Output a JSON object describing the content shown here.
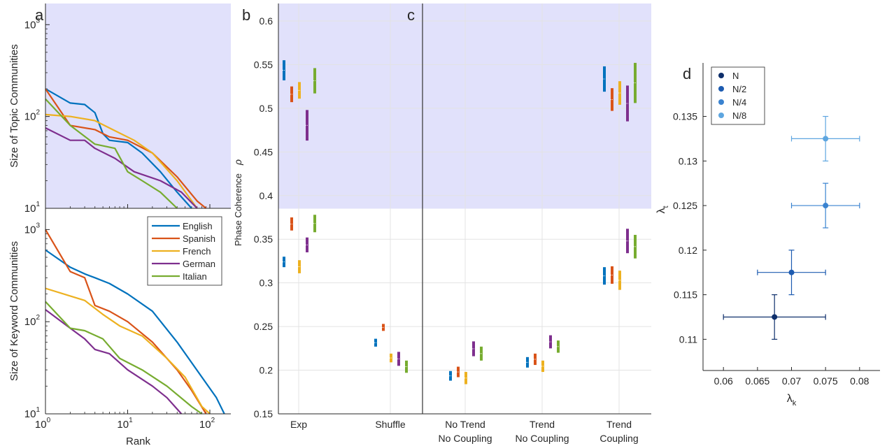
{
  "panels": {
    "a": "a",
    "b": "b",
    "c": "c",
    "d": "d"
  },
  "chart_data": [
    {
      "type": "line",
      "panel": "a-top",
      "ylabel": "Size of Topic Communities",
      "xscale": "log",
      "yscale": "log",
      "xlim": [
        1,
        180
      ],
      "ylim": [
        10,
        1700
      ],
      "ytick_labels": [
        {
          "base": "10",
          "exp": "1"
        },
        {
          "base": "10",
          "exp": "2"
        },
        {
          "base": "10",
          "exp": "3"
        }
      ],
      "shaded_background": "#e1e1fb",
      "series": [
        {
          "name": "English",
          "color": "#0072bd",
          "points": [
            [
              1,
              200
            ],
            [
              2,
              140
            ],
            [
              3,
              135
            ],
            [
              4,
              110
            ],
            [
              5,
              65
            ],
            [
              6,
              55
            ],
            [
              10,
              52
            ],
            [
              15,
              40
            ],
            [
              25,
              25
            ],
            [
              40,
              15
            ],
            [
              60,
              10
            ]
          ]
        },
        {
          "name": "Spanish",
          "color": "#d95319",
          "points": [
            [
              1,
              200
            ],
            [
              2,
              80
            ],
            [
              4,
              72
            ],
            [
              6,
              60
            ],
            [
              10,
              55
            ],
            [
              20,
              40
            ],
            [
              40,
              22
            ],
            [
              70,
              12
            ],
            [
              90,
              10
            ]
          ]
        },
        {
          "name": "French",
          "color": "#edb120",
          "points": [
            [
              1,
              105
            ],
            [
              2,
              100
            ],
            [
              4,
              90
            ],
            [
              7,
              70
            ],
            [
              12,
              55
            ],
            [
              20,
              40
            ],
            [
              40,
              20
            ],
            [
              70,
              10
            ]
          ]
        },
        {
          "name": "German",
          "color": "#7e2f8e",
          "points": [
            [
              1,
              75
            ],
            [
              2,
              55
            ],
            [
              3,
              55
            ],
            [
              4,
              45
            ],
            [
              7,
              35
            ],
            [
              12,
              25
            ],
            [
              25,
              20
            ],
            [
              45,
              15
            ],
            [
              70,
              10
            ]
          ]
        },
        {
          "name": "Italian",
          "color": "#77ac30",
          "points": [
            [
              1,
              155
            ],
            [
              2,
              80
            ],
            [
              4,
              50
            ],
            [
              7,
              45
            ],
            [
              10,
              25
            ],
            [
              15,
              20
            ],
            [
              25,
              15
            ],
            [
              40,
              10
            ]
          ]
        }
      ]
    },
    {
      "type": "line",
      "panel": "a-bottom",
      "ylabel": "Size of Keyword Communities",
      "xlabel": "Rank",
      "xscale": "log",
      "yscale": "log",
      "xlim": [
        1,
        180
      ],
      "ylim": [
        10,
        1700
      ],
      "xtick_labels": [
        {
          "base": "10",
          "exp": "0"
        },
        {
          "base": "10",
          "exp": "1"
        },
        {
          "base": "10",
          "exp": "2"
        }
      ],
      "ytick_labels": [
        {
          "base": "10",
          "exp": "1"
        },
        {
          "base": "10",
          "exp": "2"
        },
        {
          "base": "10",
          "exp": "3"
        }
      ],
      "legend": {
        "position": "top-right",
        "entries": [
          "English",
          "Spanish",
          "French",
          "German",
          "Italian"
        ]
      },
      "series": [
        {
          "name": "English",
          "color": "#0072bd",
          "points": [
            [
              1,
              600
            ],
            [
              2,
              390
            ],
            [
              3,
              330
            ],
            [
              4,
              300
            ],
            [
              6,
              260
            ],
            [
              10,
              200
            ],
            [
              20,
              130
            ],
            [
              40,
              60
            ],
            [
              80,
              25
            ],
            [
              120,
              15
            ],
            [
              150,
              10
            ]
          ]
        },
        {
          "name": "Spanish",
          "color": "#d95319",
          "points": [
            [
              1,
              1000
            ],
            [
              2,
              350
            ],
            [
              3,
              300
            ],
            [
              4,
              150
            ],
            [
              6,
              130
            ],
            [
              10,
              100
            ],
            [
              20,
              60
            ],
            [
              40,
              30
            ],
            [
              60,
              18
            ],
            [
              90,
              10
            ]
          ]
        },
        {
          "name": "French",
          "color": "#edb120",
          "points": [
            [
              1,
              230
            ],
            [
              2,
              190
            ],
            [
              3,
              170
            ],
            [
              5,
              120
            ],
            [
              8,
              90
            ],
            [
              15,
              70
            ],
            [
              30,
              40
            ],
            [
              50,
              25
            ],
            [
              80,
              12
            ],
            [
              100,
              10
            ]
          ]
        },
        {
          "name": "German",
          "color": "#7e2f8e",
          "points": [
            [
              1,
              135
            ],
            [
              2,
              85
            ],
            [
              3,
              65
            ],
            [
              4,
              50
            ],
            [
              6,
              45
            ],
            [
              10,
              30
            ],
            [
              20,
              20
            ],
            [
              30,
              15
            ],
            [
              45,
              10
            ]
          ]
        },
        {
          "name": "Italian",
          "color": "#77ac30",
          "points": [
            [
              1,
              165
            ],
            [
              2,
              85
            ],
            [
              3,
              80
            ],
            [
              5,
              65
            ],
            [
              8,
              40
            ],
            [
              15,
              30
            ],
            [
              30,
              20
            ],
            [
              60,
              12
            ],
            [
              80,
              10
            ]
          ]
        }
      ]
    },
    {
      "type": "scatter",
      "panel": "b-c",
      "ylabel": "Phase Coherence",
      "ylabel_symbol": "ρ",
      "ylim": [
        0.15,
        0.62
      ],
      "yticks": [
        "0.15",
        "0.2",
        "0.25",
        "0.3",
        "0.35",
        "0.4",
        "0.45",
        "0.5",
        "0.55",
        "0.6"
      ],
      "shaded_from": 0.385,
      "categories": [
        {
          "lines": [
            "Exp"
          ]
        },
        {
          "lines": [
            "Shuffle"
          ]
        },
        {
          "lines": [
            "No Trend",
            "No Coupling"
          ]
        },
        {
          "lines": [
            "Trend",
            "No Coupling"
          ]
        },
        {
          "lines": [
            "Trend",
            "Coupling"
          ]
        }
      ],
      "colors": [
        "#0072bd",
        "#d95319",
        "#edb120",
        "#7e2f8e",
        "#77ac30"
      ],
      "upper_bars": [
        {
          "cat": 0,
          "series": 0,
          "lo": 0.532,
          "hi": 0.555
        },
        {
          "cat": 0,
          "series": 1,
          "lo": 0.507,
          "hi": 0.525
        },
        {
          "cat": 0,
          "series": 2,
          "lo": 0.511,
          "hi": 0.53
        },
        {
          "cat": 0,
          "series": 3,
          "lo": 0.463,
          "hi": 0.498
        },
        {
          "cat": 0,
          "series": 4,
          "lo": 0.517,
          "hi": 0.546
        },
        {
          "cat": 4,
          "series": 0,
          "lo": 0.519,
          "hi": 0.548
        },
        {
          "cat": 4,
          "series": 1,
          "lo": 0.497,
          "hi": 0.523
        },
        {
          "cat": 4,
          "series": 2,
          "lo": 0.504,
          "hi": 0.531
        },
        {
          "cat": 4,
          "series": 3,
          "lo": 0.485,
          "hi": 0.526
        },
        {
          "cat": 4,
          "series": 4,
          "lo": 0.506,
          "hi": 0.552
        }
      ],
      "lower_bars": [
        {
          "cat": 0,
          "series": 0,
          "lo": 0.318,
          "hi": 0.33
        },
        {
          "cat": 0,
          "series": 1,
          "lo": 0.36,
          "hi": 0.375
        },
        {
          "cat": 0,
          "series": 2,
          "lo": 0.311,
          "hi": 0.326
        },
        {
          "cat": 0,
          "series": 3,
          "lo": 0.335,
          "hi": 0.352
        },
        {
          "cat": 0,
          "series": 4,
          "lo": 0.358,
          "hi": 0.378
        },
        {
          "cat": 1,
          "series": 0,
          "lo": 0.227,
          "hi": 0.236
        },
        {
          "cat": 1,
          "series": 1,
          "lo": 0.245,
          "hi": 0.253
        },
        {
          "cat": 1,
          "series": 2,
          "lo": 0.209,
          "hi": 0.219
        },
        {
          "cat": 1,
          "series": 3,
          "lo": 0.205,
          "hi": 0.221
        },
        {
          "cat": 1,
          "series": 4,
          "lo": 0.197,
          "hi": 0.211
        },
        {
          "cat": 2,
          "series": 0,
          "lo": 0.188,
          "hi": 0.199
        },
        {
          "cat": 2,
          "series": 1,
          "lo": 0.192,
          "hi": 0.204
        },
        {
          "cat": 2,
          "series": 2,
          "lo": 0.184,
          "hi": 0.198
        },
        {
          "cat": 2,
          "series": 3,
          "lo": 0.216,
          "hi": 0.233
        },
        {
          "cat": 2,
          "series": 4,
          "lo": 0.211,
          "hi": 0.227
        },
        {
          "cat": 3,
          "series": 0,
          "lo": 0.203,
          "hi": 0.215
        },
        {
          "cat": 3,
          "series": 1,
          "lo": 0.206,
          "hi": 0.219
        },
        {
          "cat": 3,
          "series": 2,
          "lo": 0.198,
          "hi": 0.211
        },
        {
          "cat": 3,
          "series": 3,
          "lo": 0.225,
          "hi": 0.24
        },
        {
          "cat": 3,
          "series": 4,
          "lo": 0.22,
          "hi": 0.234
        },
        {
          "cat": 4,
          "series": 0,
          "lo": 0.298,
          "hi": 0.318
        },
        {
          "cat": 4,
          "series": 1,
          "lo": 0.299,
          "hi": 0.319
        },
        {
          "cat": 4,
          "series": 2,
          "lo": 0.292,
          "hi": 0.314
        },
        {
          "cat": 4,
          "series": 3,
          "lo": 0.334,
          "hi": 0.362
        },
        {
          "cat": 4,
          "series": 4,
          "lo": 0.328,
          "hi": 0.355
        }
      ]
    },
    {
      "type": "scatter",
      "panel": "d",
      "xlabel": {
        "sym": "λ",
        "sub": "k"
      },
      "ylabel": {
        "sym": "λ",
        "sub": "t"
      },
      "xlim": [
        0.057,
        0.083
      ],
      "ylim": [
        0.1065,
        0.141
      ],
      "xticks": [
        "0.06",
        "0.065",
        "0.07",
        "0.075",
        "0.08"
      ],
      "yticks": [
        "0.11",
        "0.115",
        "0.12",
        "0.125",
        "0.13",
        "0.135"
      ],
      "legend": {
        "position": "top-left",
        "entries": [
          "N",
          "N/2",
          "N/4",
          "N/8"
        ]
      },
      "points": [
        {
          "label": "N",
          "color": "#0e2f6b",
          "x": 0.0675,
          "y": 0.1125,
          "xerr": [
            0.06,
            0.075
          ],
          "yerr": [
            0.11,
            0.115
          ]
        },
        {
          "label": "N/2",
          "color": "#1d5bb0",
          "x": 0.07,
          "y": 0.1175,
          "xerr": [
            0.065,
            0.075
          ],
          "yerr": [
            0.115,
            0.12
          ]
        },
        {
          "label": "N/4",
          "color": "#3a83d0",
          "x": 0.075,
          "y": 0.125,
          "xerr": [
            0.07,
            0.08
          ],
          "yerr": [
            0.1225,
            0.1275
          ]
        },
        {
          "label": "N/8",
          "color": "#5ea6e0",
          "x": 0.075,
          "y": 0.1325,
          "xerr": [
            0.07,
            0.08
          ],
          "yerr": [
            0.13,
            0.135
          ]
        }
      ]
    }
  ]
}
